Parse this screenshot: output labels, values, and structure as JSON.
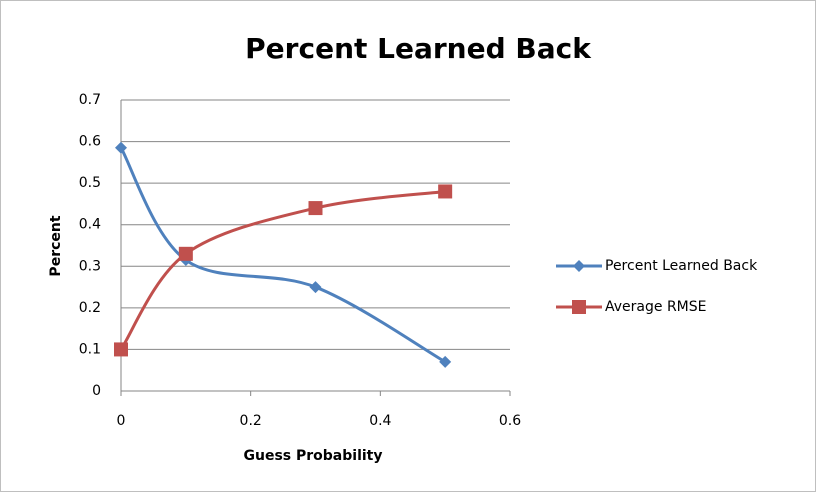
{
  "chart_data": {
    "type": "line",
    "title": "Percent Learned Back",
    "xlabel": "Guess Probability",
    "ylabel": "Percent",
    "x": [
      0,
      0.1,
      0.3,
      0.5
    ],
    "series": [
      {
        "name": "Percent Learned Back",
        "color": "#4f81bd",
        "marker": "diamond",
        "values": [
          0.585,
          0.315,
          0.25,
          0.07
        ]
      },
      {
        "name": "Average RMSE",
        "color": "#c0504d",
        "marker": "square",
        "values": [
          0.1,
          0.33,
          0.44,
          0.48
        ]
      }
    ],
    "xlim": [
      0,
      0.6
    ],
    "xticks": [
      0,
      0.2,
      0.4,
      0.6
    ],
    "ylim": [
      0,
      0.7
    ],
    "yticks": [
      0,
      0.1,
      0.2,
      0.3,
      0.4,
      0.5,
      0.6,
      0.7
    ],
    "grid": true,
    "smooth": true,
    "legend": "right"
  }
}
